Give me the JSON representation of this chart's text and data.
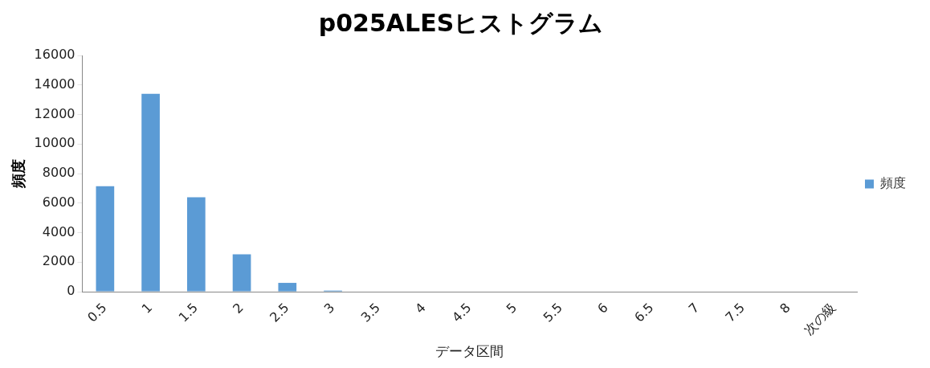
{
  "chart_data": {
    "type": "bar",
    "title": "p025ALESヒストグラム",
    "xlabel": "データ区間",
    "ylabel": "頻度",
    "categories": [
      "0.5",
      "1",
      "1.5",
      "2",
      "2.5",
      "3",
      "3.5",
      "4",
      "4.5",
      "5",
      "5.5",
      "6",
      "6.5",
      "7",
      "7.5",
      "8",
      "次の級"
    ],
    "series": [
      {
        "name": "頻度",
        "color": "#5b9bd5",
        "values": [
          7150,
          13400,
          6400,
          2540,
          600,
          80,
          0,
          0,
          0,
          0,
          0,
          0,
          0,
          0,
          0,
          0,
          0
        ]
      }
    ],
    "ylim": [
      0,
      16000
    ],
    "yticks": [
      0,
      2000,
      4000,
      6000,
      8000,
      10000,
      12000,
      14000,
      16000
    ],
    "grid": false,
    "legend": "right"
  }
}
